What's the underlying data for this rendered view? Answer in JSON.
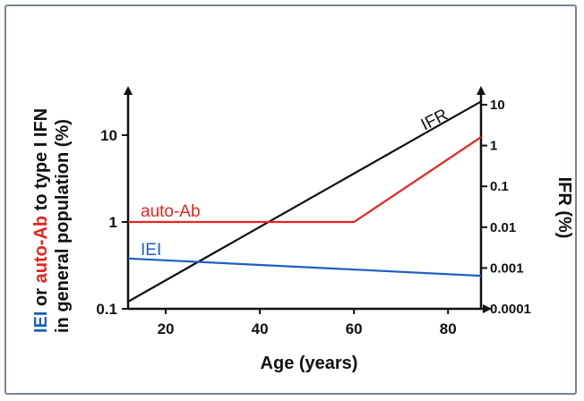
{
  "chart_data": {
    "type": "line",
    "xlabel": "Age (years)",
    "x_ticks": [
      "20",
      "40",
      "60",
      "80"
    ],
    "xlim": [
      12,
      87
    ],
    "left_axis": {
      "label_parts": [
        {
          "text": "IEI",
          "color": "#1f5fbf"
        },
        {
          "text": " or ",
          "color": "#111111"
        },
        {
          "text": "auto-Ab",
          "color": "#e8231f"
        },
        {
          "text": " to type I IFN",
          "color": "#111111"
        }
      ],
      "label_line2": "in general population (%)",
      "scale": "log",
      "ylim": [
        0.1,
        30
      ],
      "ticks": [
        "0.1",
        "1",
        "10"
      ]
    },
    "right_axis": {
      "label": "IFR (%)",
      "scale": "log",
      "ylim": [
        0.0001,
        20
      ],
      "ticks": [
        "0.0001",
        "0.001",
        "0.01",
        "0.1",
        "1",
        "10"
      ]
    },
    "series": [
      {
        "name": "IFR",
        "axis": "right",
        "color": "#111111",
        "x": [
          12,
          87
        ],
        "y": [
          0.00015,
          12
        ]
      },
      {
        "name": "auto-Ab",
        "axis": "left",
        "color": "#e8231f",
        "x": [
          12,
          60,
          87
        ],
        "y": [
          1.0,
          1.0,
          9.5
        ]
      },
      {
        "name": "IEI",
        "axis": "left",
        "color": "#1f5fbf",
        "x": [
          12,
          87
        ],
        "y": [
          0.38,
          0.24
        ]
      }
    ]
  }
}
